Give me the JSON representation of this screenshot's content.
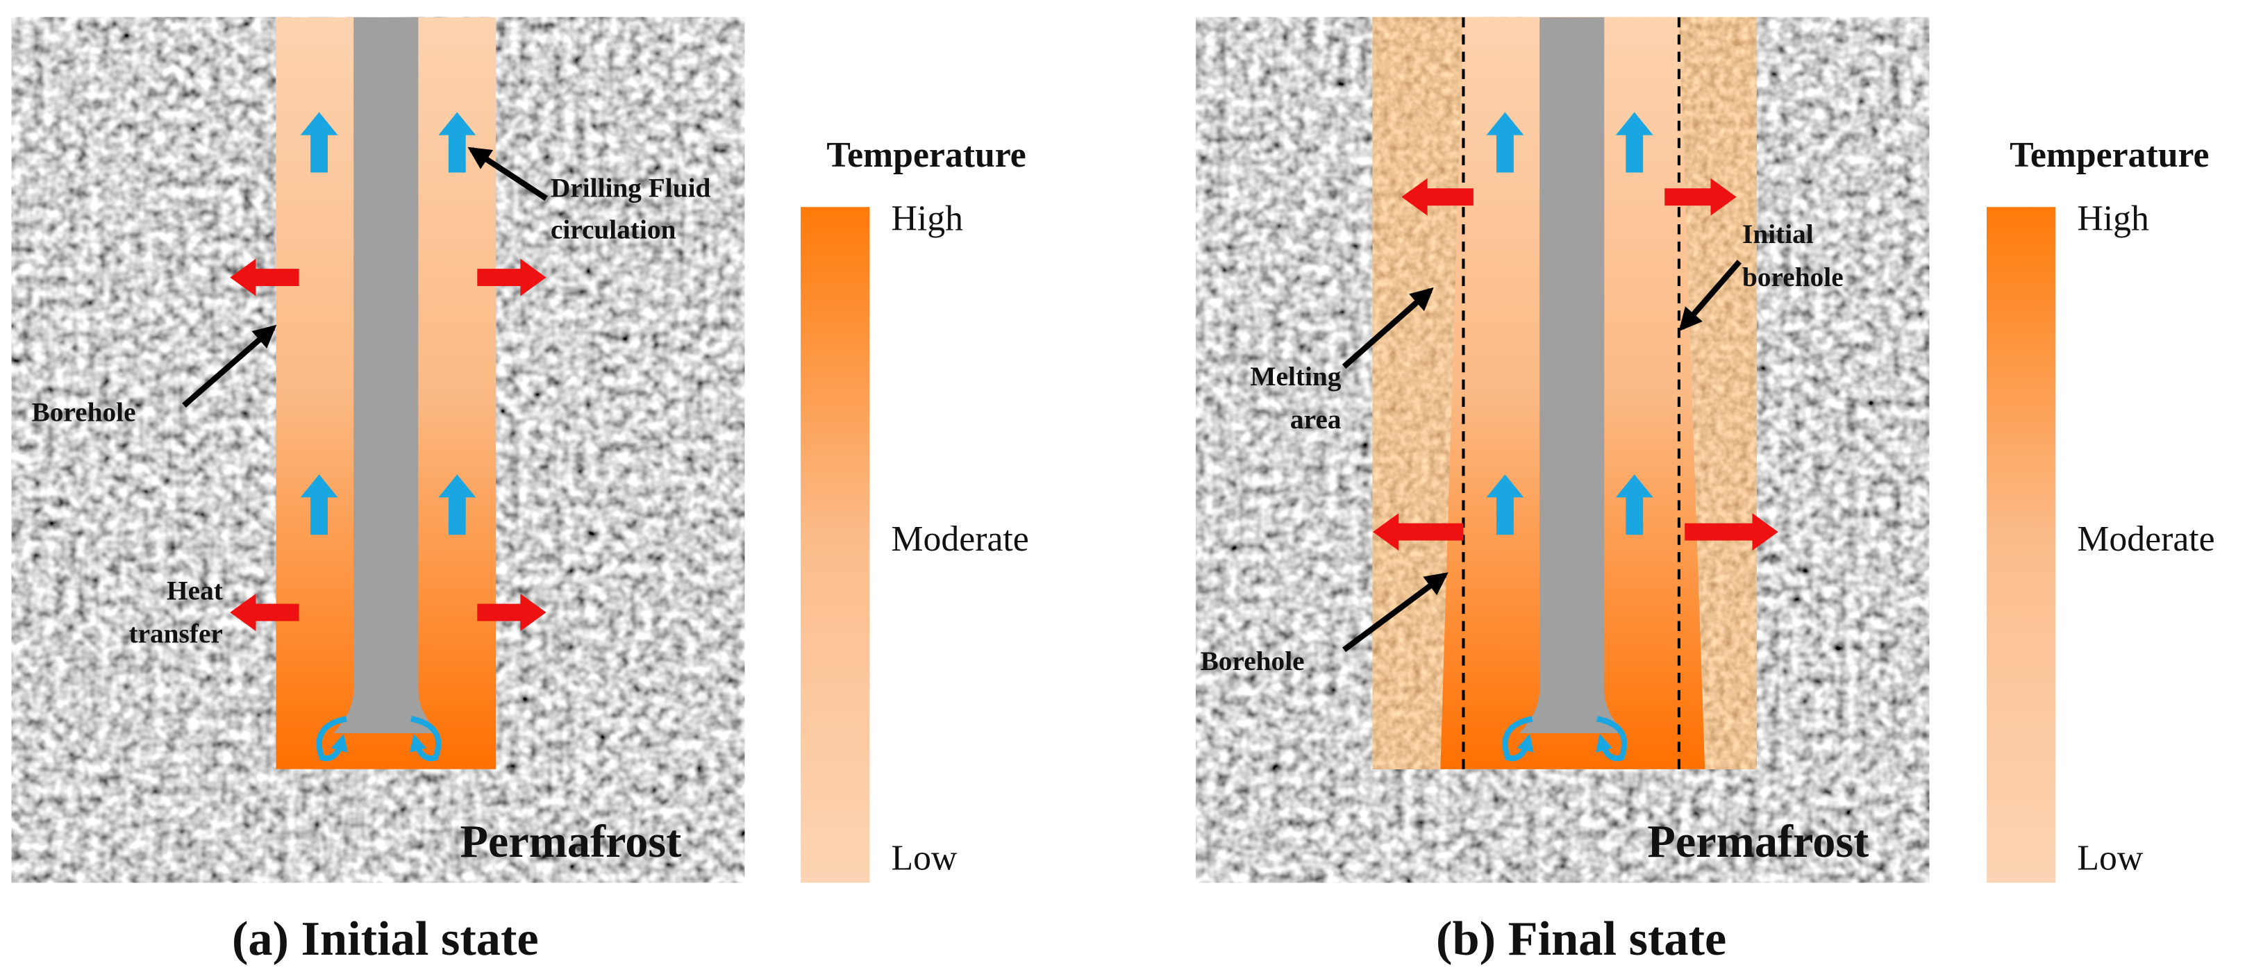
{
  "panels": [
    {
      "caption": "(a) Initial state",
      "region": "Permafrost",
      "labels": [
        [
          "Drilling Fluid",
          "circulation"
        ],
        [
          "Borehole"
        ],
        [
          "Heat",
          "transfer"
        ]
      ],
      "legend": {
        "title": "Temperature",
        "high": "High",
        "moderate": "Moderate",
        "low": "Low"
      }
    },
    {
      "caption": "(b) Final state",
      "region": "Permafrost",
      "labels": [
        [
          "Initial",
          "borehole"
        ],
        [
          "Melting",
          "area"
        ],
        [
          "Borehole"
        ]
      ],
      "legend": {
        "title": "Temperature",
        "high": "High",
        "moderate": "Moderate",
        "low": "Low"
      }
    }
  ]
}
